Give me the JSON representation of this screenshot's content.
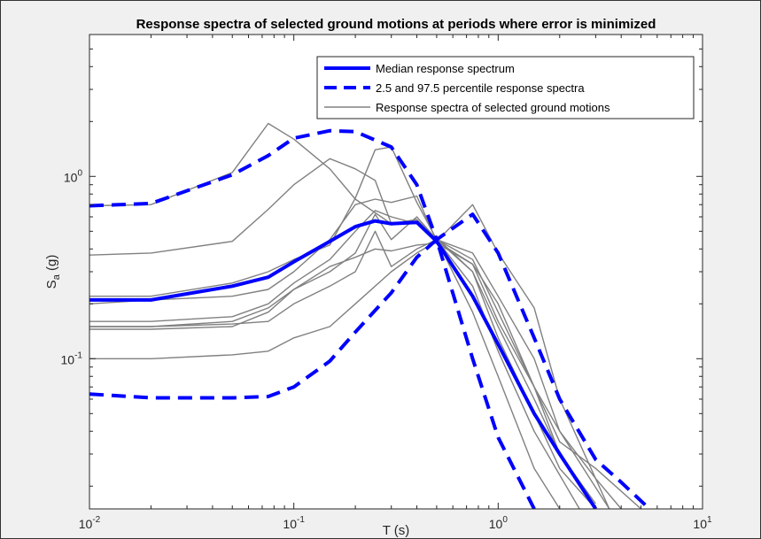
{
  "chart_data": {
    "type": "line",
    "title": "Response spectra of selected ground motions at periods where error is minimized",
    "xlabel": "T (s)",
    "ylabel": "S_a (g)",
    "xscale": "log",
    "yscale": "log",
    "xlim": [
      0.01,
      10
    ],
    "ylim": [
      0.015,
      6
    ],
    "grid": false,
    "legend_position": "top-right",
    "x_ticks": [
      {
        "base": "10",
        "exp": "-2"
      },
      {
        "base": "10",
        "exp": "-1"
      },
      {
        "base": "10",
        "exp": "0"
      },
      {
        "base": "10",
        "exp": "1"
      }
    ],
    "y_ticks": [
      {
        "value": 0.1,
        "base": "10",
        "exp": "-1"
      },
      {
        "value": 1,
        "base": "10",
        "exp": "0"
      }
    ],
    "series": [
      {
        "name": "Median response spectrum",
        "style": "solid-thick",
        "color": "#0000ff",
        "x": [
          0.01,
          0.02,
          0.05,
          0.075,
          0.1,
          0.15,
          0.2,
          0.25,
          0.3,
          0.4,
          0.5,
          0.75,
          1.0,
          1.5,
          2.0,
          3.0
        ],
        "y": [
          0.21,
          0.21,
          0.25,
          0.28,
          0.34,
          0.44,
          0.53,
          0.57,
          0.55,
          0.56,
          0.44,
          0.22,
          0.12,
          0.05,
          0.03,
          0.015
        ]
      },
      {
        "name": "2.5 and 97.5 percentile response spectra",
        "style": "dashed-thick",
        "color": "#0000ff",
        "x": [
          0.01,
          0.02,
          0.05,
          0.075,
          0.1,
          0.15,
          0.2,
          0.3,
          0.4,
          0.5,
          0.75,
          1.0,
          1.5,
          2.0,
          3.0,
          4.0,
          5.5
        ],
        "y": [
          0.69,
          0.71,
          1.02,
          1.3,
          1.62,
          1.78,
          1.76,
          1.45,
          0.9,
          0.45,
          0.62,
          0.38,
          0.13,
          0.06,
          0.028,
          0.021,
          0.015
        ]
      },
      {
        "style": "dashed-thick",
        "color": "#0000ff",
        "x": [
          0.01,
          0.02,
          0.05,
          0.075,
          0.1,
          0.15,
          0.2,
          0.3,
          0.4,
          0.5,
          0.75,
          1.0,
          1.5
        ],
        "y": [
          0.064,
          0.061,
          0.061,
          0.062,
          0.07,
          0.097,
          0.14,
          0.23,
          0.36,
          0.45,
          0.1,
          0.037,
          0.015
        ]
      },
      {
        "name": "Response spectra of selected ground motions",
        "style": "solid-thin",
        "color": "#808080",
        "x": [
          0.01,
          0.02,
          0.05,
          0.075,
          0.1,
          0.15,
          0.2,
          0.3,
          0.4,
          0.5,
          0.75,
          1.0,
          1.5,
          2.0
        ],
        "y": [
          0.69,
          0.7,
          1.05,
          1.95,
          1.6,
          1.1,
          0.75,
          0.55,
          0.55,
          0.45,
          0.18,
          0.08,
          0.025,
          0.015
        ]
      },
      {
        "style": "solid-thin",
        "color": "#808080",
        "x": [
          0.01,
          0.02,
          0.05,
          0.075,
          0.1,
          0.15,
          0.2,
          0.25,
          0.3,
          0.4,
          0.5,
          0.75,
          1.0,
          1.5,
          2.5
        ],
        "y": [
          0.37,
          0.38,
          0.44,
          0.66,
          0.9,
          1.25,
          1.1,
          0.95,
          0.55,
          0.58,
          0.45,
          0.25,
          0.11,
          0.04,
          0.015
        ]
      },
      {
        "style": "solid-thin",
        "color": "#808080",
        "x": [
          0.01,
          0.02,
          0.05,
          0.075,
          0.1,
          0.15,
          0.2,
          0.25,
          0.3,
          0.4,
          0.5,
          0.75,
          1.0,
          1.5,
          2.0,
          3.0
        ],
        "y": [
          0.22,
          0.22,
          0.26,
          0.3,
          0.35,
          0.42,
          0.76,
          1.4,
          1.45,
          0.72,
          0.45,
          0.3,
          0.15,
          0.06,
          0.03,
          0.016
        ]
      },
      {
        "style": "solid-thin",
        "color": "#808080",
        "x": [
          0.01,
          0.02,
          0.05,
          0.075,
          0.1,
          0.15,
          0.2,
          0.25,
          0.3,
          0.4,
          0.5,
          0.75,
          1.0,
          1.5,
          2.0,
          3.5
        ],
        "y": [
          0.2,
          0.21,
          0.22,
          0.24,
          0.3,
          0.45,
          0.7,
          0.75,
          0.72,
          0.78,
          0.44,
          0.7,
          0.38,
          0.19,
          0.06,
          0.015
        ]
      },
      {
        "style": "solid-thin",
        "color": "#808080",
        "x": [
          0.01,
          0.02,
          0.05,
          0.075,
          0.1,
          0.15,
          0.2,
          0.25,
          0.3,
          0.4,
          0.5,
          0.75,
          1.0,
          1.5,
          2.0,
          3.0
        ],
        "y": [
          0.16,
          0.16,
          0.17,
          0.2,
          0.26,
          0.35,
          0.5,
          0.65,
          0.6,
          0.55,
          0.46,
          0.3,
          0.13,
          0.05,
          0.025,
          0.015
        ]
      },
      {
        "style": "solid-thin",
        "color": "#808080",
        "x": [
          0.01,
          0.02,
          0.05,
          0.075,
          0.1,
          0.15,
          0.2,
          0.25,
          0.3,
          0.4,
          0.5,
          0.75,
          1.0,
          1.5,
          2.0,
          3.0,
          4.0
        ],
        "y": [
          0.15,
          0.15,
          0.16,
          0.19,
          0.24,
          0.3,
          0.38,
          0.62,
          0.45,
          0.6,
          0.45,
          0.35,
          0.18,
          0.07,
          0.04,
          0.022,
          0.015
        ]
      },
      {
        "style": "solid-thin",
        "color": "#808080",
        "x": [
          0.01,
          0.02,
          0.05,
          0.075,
          0.1,
          0.15,
          0.2,
          0.25,
          0.3,
          0.4,
          0.5,
          0.75,
          1.0,
          1.5,
          2.0,
          3.5
        ],
        "y": [
          0.15,
          0.15,
          0.155,
          0.16,
          0.2,
          0.25,
          0.3,
          0.5,
          0.32,
          0.4,
          0.45,
          0.38,
          0.22,
          0.1,
          0.04,
          0.015
        ]
      },
      {
        "style": "solid-thin",
        "color": "#808080",
        "x": [
          0.01,
          0.02,
          0.05,
          0.075,
          0.1,
          0.15,
          0.2,
          0.25,
          0.3,
          0.4,
          0.5,
          0.75,
          1.0,
          1.5,
          2.0,
          3.0,
          5.0
        ],
        "y": [
          0.145,
          0.145,
          0.15,
          0.18,
          0.24,
          0.32,
          0.36,
          0.4,
          0.39,
          0.42,
          0.43,
          0.33,
          0.16,
          0.07,
          0.035,
          0.025,
          0.015
        ]
      },
      {
        "style": "solid-thin",
        "color": "#808080",
        "x": [
          0.01,
          0.02,
          0.05,
          0.075,
          0.1,
          0.15,
          0.2,
          0.3,
          0.4,
          0.5,
          0.75,
          1.0,
          1.5,
          2.0,
          3.0
        ],
        "y": [
          0.1,
          0.1,
          0.105,
          0.11,
          0.13,
          0.15,
          0.2,
          0.3,
          0.38,
          0.44,
          0.33,
          0.2,
          0.07,
          0.03,
          0.015
        ]
      }
    ]
  }
}
